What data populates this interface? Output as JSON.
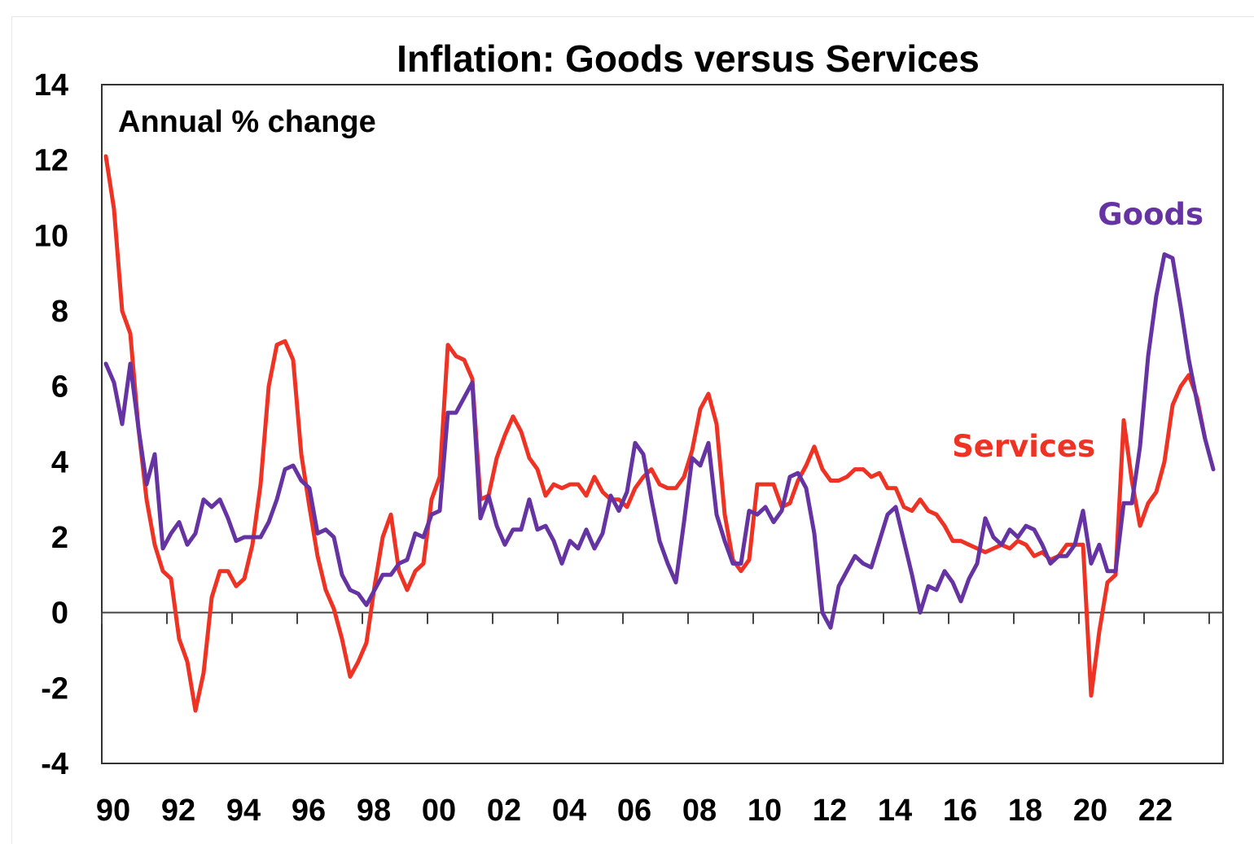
{
  "chart_data": {
    "type": "line",
    "title": "Inflation: Goods versus Services",
    "subtitle": "Annual % change",
    "xlabel": "",
    "ylabel": "",
    "ylim": [
      -4,
      14
    ],
    "yticks": [
      14,
      12,
      10,
      8,
      6,
      4,
      2,
      0,
      -2,
      -4
    ],
    "ytick_labels": [
      "14",
      "12",
      "10",
      "8",
      "6",
      "4",
      "2",
      "0",
      "-2",
      "-4"
    ],
    "xlim": [
      1990,
      2024.5
    ],
    "xticks": [
      1990,
      1992,
      1994,
      1996,
      1998,
      2000,
      2002,
      2004,
      2006,
      2008,
      2010,
      2012,
      2014,
      2016,
      2018,
      2020,
      2022
    ],
    "xtick_labels": [
      "90",
      "92",
      "94",
      "96",
      "98",
      "00",
      "02",
      "04",
      "06",
      "08",
      "10",
      "12",
      "14",
      "16",
      "18",
      "20",
      "22"
    ],
    "x_frequency": "quarterly",
    "x_start": "1990 Q1",
    "grid": false,
    "legend": "inline labels",
    "series": [
      {
        "name": "Goods",
        "color": "#6633a3",
        "label_position": "top-right",
        "values": [
          6.6,
          6.1,
          5.0,
          6.6,
          4.9,
          3.4,
          4.2,
          1.7,
          2.1,
          2.4,
          1.8,
          2.1,
          3.0,
          2.8,
          3.0,
          2.5,
          1.9,
          2.0,
          2.0,
          2.0,
          2.4,
          3.0,
          3.8,
          3.9,
          3.5,
          3.3,
          2.1,
          2.2,
          2.0,
          1.0,
          0.6,
          0.5,
          0.2,
          0.6,
          1.0,
          1.0,
          1.3,
          1.4,
          2.1,
          2.0,
          2.6,
          2.7,
          5.3,
          5.3,
          5.7,
          6.1,
          2.5,
          3.1,
          2.3,
          1.8,
          2.2,
          2.2,
          3.0,
          2.2,
          2.3,
          1.9,
          1.3,
          1.9,
          1.7,
          2.2,
          1.7,
          2.1,
          3.1,
          2.7,
          3.2,
          4.5,
          4.2,
          3.0,
          1.9,
          1.3,
          0.8,
          2.4,
          4.1,
          3.9,
          4.5,
          2.6,
          1.9,
          1.3,
          1.3,
          2.7,
          2.6,
          2.8,
          2.4,
          2.7,
          3.6,
          3.7,
          3.3,
          2.1,
          0.0,
          -0.4,
          0.7,
          1.1,
          1.5,
          1.3,
          1.2,
          1.9,
          2.6,
          2.8,
          1.9,
          1.0,
          0.0,
          0.7,
          0.6,
          1.1,
          0.8,
          0.3,
          0.9,
          1.3,
          2.5,
          2.0,
          1.8,
          2.2,
          2.0,
          2.3,
          2.2,
          1.8,
          1.3,
          1.5,
          1.5,
          1.8,
          2.7,
          1.3,
          1.8,
          1.1,
          1.1,
          2.9,
          2.9,
          4.4,
          6.8,
          8.4,
          9.5,
          9.4,
          8.1,
          6.7,
          5.6,
          4.6,
          3.8
        ]
      },
      {
        "name": "Services",
        "color": "#ee3224",
        "label_position": "right",
        "values": [
          12.1,
          10.7,
          8.0,
          7.4,
          4.9,
          3.0,
          1.8,
          1.1,
          0.9,
          -0.7,
          -1.3,
          -2.6,
          -1.6,
          0.4,
          1.1,
          1.1,
          0.7,
          0.9,
          1.8,
          3.4,
          6.0,
          7.1,
          7.2,
          6.7,
          4.2,
          2.8,
          1.5,
          0.6,
          0.1,
          -0.7,
          -1.7,
          -1.3,
          -0.8,
          0.7,
          2.0,
          2.6,
          1.1,
          0.6,
          1.1,
          1.3,
          3.0,
          3.6,
          7.1,
          6.8,
          6.7,
          6.2,
          3.0,
          3.1,
          4.1,
          4.7,
          5.2,
          4.8,
          4.1,
          3.8,
          3.1,
          3.4,
          3.3,
          3.4,
          3.4,
          3.1,
          3.6,
          3.2,
          3.0,
          3.0,
          2.8,
          3.3,
          3.6,
          3.8,
          3.4,
          3.3,
          3.3,
          3.6,
          4.3,
          5.4,
          5.8,
          5.0,
          2.6,
          1.4,
          1.1,
          1.4,
          3.4,
          3.4,
          3.4,
          2.8,
          2.9,
          3.5,
          3.9,
          4.4,
          3.8,
          3.5,
          3.5,
          3.6,
          3.8,
          3.8,
          3.6,
          3.7,
          3.3,
          3.3,
          2.8,
          2.7,
          3.0,
          2.7,
          2.6,
          2.3,
          1.9,
          1.9,
          1.8,
          1.7,
          1.6,
          1.7,
          1.8,
          1.7,
          1.9,
          1.8,
          1.5,
          1.6,
          1.4,
          1.5,
          1.8,
          1.8,
          1.8,
          -2.2,
          -0.5,
          0.8,
          1.0,
          5.1,
          3.5,
          2.3,
          2.9,
          3.2,
          4.0,
          5.5,
          6.0,
          6.3,
          5.7,
          4.6
        ]
      }
    ]
  }
}
